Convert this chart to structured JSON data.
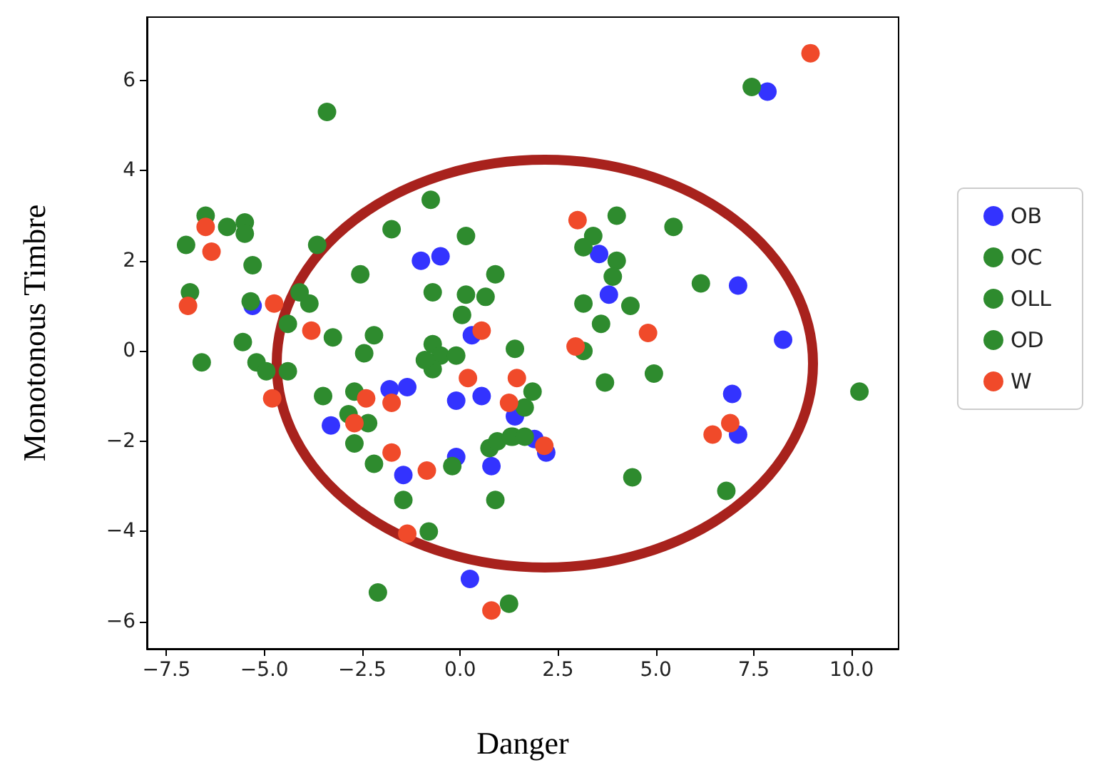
{
  "chart_data": {
    "type": "scatter",
    "xlabel": "Danger",
    "ylabel": "Monotonous Timbre",
    "xlim": [
      -8,
      11.2
    ],
    "ylim": [
      -6.6,
      7.4
    ],
    "xticks": [
      {
        "value": -7.5,
        "label": "−7.5"
      },
      {
        "value": -5,
        "label": "−5.0"
      },
      {
        "value": -2.5,
        "label": "−2.5"
      },
      {
        "value": 0,
        "label": "0.0"
      },
      {
        "value": 2.5,
        "label": "2.5"
      },
      {
        "value": 5,
        "label": "5.0"
      },
      {
        "value": 7.5,
        "label": "7.5"
      },
      {
        "value": 10,
        "label": "10.0"
      }
    ],
    "yticks": [
      {
        "value": -6,
        "label": "−6"
      },
      {
        "value": -4,
        "label": "−4"
      },
      {
        "value": -2,
        "label": "−2"
      },
      0,
      2,
      4,
      6
    ],
    "grid": false,
    "legend": "right",
    "marker": "circle",
    "series": [
      {
        "name": "OB",
        "color": "#3333ff",
        "x": [
          -5.3,
          -1.0,
          -0.5,
          -3.3,
          -1.8,
          -1.35,
          -1.45,
          -0.1,
          0.55,
          0.3,
          -0.1,
          0.8,
          0.25,
          1.4,
          1.9,
          2.2,
          3.55,
          3.8,
          7.1,
          7.85,
          8.25,
          6.95,
          7.1
        ],
        "values": [
          1.0,
          2.0,
          2.1,
          -1.65,
          -0.85,
          -0.8,
          -2.75,
          -1.1,
          -1.0,
          0.35,
          -2.35,
          -2.55,
          -5.05,
          -1.45,
          -1.95,
          -2.25,
          2.15,
          1.25,
          1.45,
          5.75,
          0.25,
          -0.95,
          -1.85
        ]
      },
      {
        "name": "OC",
        "color": "#2e8b2e",
        "x": [
          -3.4,
          -6.5,
          -5.95,
          -5.5,
          -5.5,
          -7.0,
          -5.3,
          -6.9,
          -5.35,
          -3.65,
          -1.75,
          -0.75,
          0.15,
          -2.55,
          0.9,
          -0.7,
          0.15,
          0.65,
          0.05,
          -4.1,
          -3.85,
          -4.4,
          -5.55,
          -3.25,
          -2.2,
          -0.7,
          7.45,
          4.0,
          5.45,
          3.4,
          3.15,
          4.0,
          3.9,
          6.15,
          3.15,
          4.35,
          3.6,
          1.4,
          -6.6,
          -5.2,
          -4.95,
          -4.4,
          -2.45,
          -0.5,
          -0.1,
          -0.7,
          -0.9,
          -3.5,
          -2.7,
          -2.85,
          -2.35,
          -2.7,
          -2.2,
          -0.2,
          -1.45,
          0.9,
          -0.8,
          0.75,
          0.95,
          1.35,
          -2.1,
          1.25,
          3.15,
          3.7,
          4.95,
          1.85,
          1.65,
          1.3,
          1.65,
          4.4,
          6.8,
          10.2
        ],
        "values": [
          5.3,
          3.0,
          2.75,
          2.85,
          2.6,
          2.35,
          1.9,
          1.3,
          1.1,
          2.35,
          2.7,
          3.35,
          2.55,
          1.7,
          1.7,
          1.3,
          1.25,
          1.2,
          0.8,
          1.3,
          1.05,
          0.6,
          0.2,
          0.3,
          0.35,
          0.15,
          5.85,
          3.0,
          2.75,
          2.55,
          2.3,
          2.0,
          1.65,
          1.5,
          1.05,
          1.0,
          0.6,
          0.05,
          -0.25,
          -0.25,
          -0.45,
          -0.45,
          -0.05,
          -0.1,
          -0.1,
          -0.4,
          -0.2,
          -1.0,
          -0.9,
          -1.4,
          -1.6,
          -2.05,
          -2.5,
          -2.55,
          -3.3,
          -3.3,
          -4.0,
          -2.15,
          -2.0,
          -1.9,
          -5.35,
          -5.6,
          0.0,
          -0.7,
          -0.5,
          -0.9,
          -1.25,
          -1.9,
          -1.9,
          -2.8,
          -3.1,
          -0.9
        ]
      },
      {
        "name": "OLL",
        "color": "#2e8b2e"
      },
      {
        "name": "OD",
        "color": "#2e8b2e"
      },
      {
        "name": "W",
        "color": "#f04a2a",
        "x": [
          -6.5,
          -6.35,
          -6.95,
          -4.75,
          -3.8,
          -4.8,
          -2.4,
          -1.75,
          -2.7,
          -1.75,
          -0.85,
          -1.35,
          0.2,
          0.55,
          0.8,
          1.25,
          1.45,
          2.15,
          2.95,
          3.0,
          4.8,
          6.45,
          6.9,
          8.95
        ],
        "values": [
          2.75,
          2.2,
          1.0,
          1.05,
          0.45,
          -1.05,
          -1.05,
          -1.15,
          -1.6,
          -2.25,
          -2.65,
          -4.05,
          -0.6,
          0.45,
          -5.75,
          -1.15,
          -0.6,
          -2.1,
          0.1,
          2.9,
          0.4,
          -1.85,
          -1.6,
          6.6
        ]
      }
    ]
  }
}
